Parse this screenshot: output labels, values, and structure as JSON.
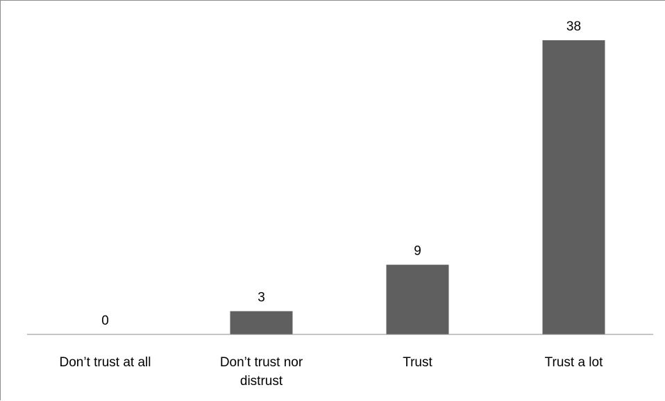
{
  "chart_data": {
    "type": "bar",
    "title": "",
    "xlabel": "",
    "ylabel": "",
    "categories": [
      [
        "Don’t trust at all"
      ],
      [
        "Don’t trust nor",
        "distrust"
      ],
      [
        "Trust"
      ],
      [
        "Trust a lot"
      ]
    ],
    "values": [
      0,
      3,
      9,
      38
    ],
    "ylim": [
      0,
      38
    ],
    "grid": false,
    "legend": "none",
    "data_labels": true,
    "bar_color": "#5f5f5f",
    "axis_color": "#8c8c8c"
  }
}
